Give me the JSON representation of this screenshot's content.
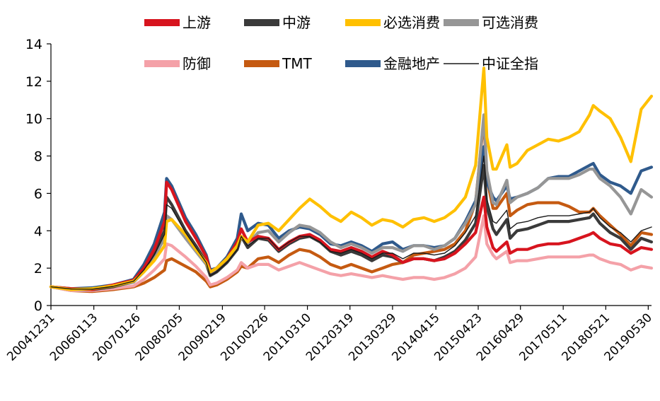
{
  "chart_data": {
    "type": "line",
    "title": "",
    "xlabel": "",
    "ylabel": "",
    "ylim": [
      0,
      14
    ],
    "yticks": [
      0,
      2,
      4,
      6,
      8,
      10,
      12,
      14
    ],
    "grid": false,
    "legend_position": "top",
    "x_tick_labels": [
      "20041231",
      "20060113",
      "20070126",
      "20080205",
      "20090219",
      "20100226",
      "20110310",
      "20120319",
      "20130329",
      "20140415",
      "20150423",
      "20160429",
      "20170511",
      "20180521",
      "20190530"
    ],
    "x": [
      "20041231",
      "20050630",
      "20051230",
      "20060630",
      "20061229",
      "20070330",
      "20070629",
      "20070928",
      "20071016",
      "20071130",
      "20080331",
      "20080630",
      "20080930",
      "20081104",
      "20081231",
      "20090331",
      "20090630",
      "20090804",
      "20090930",
      "20091231",
      "20100331",
      "20100630",
      "20100930",
      "20101231",
      "20110331",
      "20110630",
      "20110930",
      "20111230",
      "20120330",
      "20120629",
      "20120928",
      "20121231",
      "20130329",
      "20130628",
      "20130930",
      "20131231",
      "20140331",
      "20140630",
      "20140930",
      "20141231",
      "20150331",
      "20150612",
      "20150708",
      "20150831",
      "20150930",
      "20151231",
      "20160129",
      "20160331",
      "20160630",
      "20160930",
      "20161230",
      "20170331",
      "20170630",
      "20170929",
      "20171229",
      "20180131",
      "20180330",
      "20180629",
      "20180928",
      "20181228",
      "20190329",
      "20190628"
    ],
    "series": [
      {
        "name": "上游",
        "color": "#D7141E",
        "values": [
          1.0,
          0.9,
          0.85,
          1.1,
          1.35,
          2.0,
          3.0,
          4.5,
          6.6,
          6.2,
          4.5,
          3.6,
          2.6,
          1.8,
          2.0,
          2.5,
          3.4,
          4.1,
          3.4,
          3.7,
          3.6,
          3.0,
          3.4,
          3.7,
          3.8,
          3.5,
          3.0,
          2.9,
          3.1,
          2.9,
          2.6,
          2.9,
          2.7,
          2.3,
          2.5,
          2.5,
          2.4,
          2.5,
          2.8,
          3.3,
          3.9,
          5.8,
          4.2,
          3.1,
          2.9,
          3.4,
          2.8,
          3.0,
          3.0,
          3.2,
          3.3,
          3.3,
          3.4,
          3.6,
          3.8,
          3.9,
          3.6,
          3.3,
          3.2,
          2.8,
          3.1,
          3.0
        ]
      },
      {
        "name": "中游",
        "color": "#3A3A3A",
        "values": [
          1.0,
          0.88,
          0.85,
          1.0,
          1.3,
          1.9,
          2.8,
          4.0,
          5.8,
          5.4,
          4.0,
          3.2,
          2.3,
          1.6,
          1.8,
          2.3,
          3.0,
          3.7,
          3.1,
          3.6,
          3.5,
          2.9,
          3.3,
          3.6,
          3.7,
          3.4,
          2.9,
          2.7,
          2.9,
          2.7,
          2.4,
          2.7,
          2.6,
          2.3,
          2.5,
          2.5,
          2.4,
          2.6,
          2.9,
          3.5,
          4.4,
          7.5,
          5.3,
          4.1,
          3.8,
          4.6,
          3.6,
          4.0,
          4.1,
          4.3,
          4.5,
          4.5,
          4.5,
          4.6,
          4.7,
          4.9,
          4.4,
          3.9,
          3.6,
          3.0,
          3.6,
          3.4
        ]
      },
      {
        "name": "必选消费",
        "color": "#FFC000",
        "values": [
          1.0,
          0.85,
          0.9,
          1.05,
          1.3,
          1.8,
          2.4,
          3.2,
          4.5,
          4.6,
          3.8,
          3.0,
          2.3,
          1.8,
          2.0,
          2.5,
          3.2,
          3.7,
          3.4,
          4.3,
          4.4,
          4.0,
          4.6,
          5.2,
          5.7,
          5.3,
          4.8,
          4.5,
          5.0,
          4.7,
          4.3,
          4.6,
          4.5,
          4.2,
          4.6,
          4.7,
          4.5,
          4.7,
          5.1,
          5.8,
          7.5,
          12.7,
          9.0,
          7.3,
          7.3,
          8.6,
          7.4,
          7.6,
          8.3,
          8.6,
          8.9,
          8.8,
          9.0,
          9.3,
          10.2,
          10.7,
          10.4,
          10.0,
          9.0,
          7.7,
          10.5,
          11.2
        ]
      },
      {
        "name": "可选消费",
        "color": "#969696",
        "values": [
          1.0,
          0.85,
          0.85,
          1.0,
          1.25,
          1.8,
          2.6,
          3.6,
          4.8,
          4.6,
          3.6,
          2.9,
          2.2,
          1.6,
          1.8,
          2.3,
          3.0,
          3.7,
          3.3,
          3.9,
          4.0,
          3.4,
          3.9,
          4.3,
          4.2,
          3.9,
          3.4,
          3.1,
          3.3,
          3.1,
          2.8,
          3.1,
          3.1,
          2.9,
          3.2,
          3.2,
          3.0,
          3.2,
          3.6,
          4.4,
          5.4,
          10.2,
          7.2,
          5.5,
          5.4,
          6.7,
          5.5,
          5.8,
          6.0,
          6.3,
          6.8,
          6.8,
          6.8,
          7.0,
          7.3,
          7.3,
          6.8,
          6.4,
          5.8,
          4.9,
          6.2,
          5.8
        ]
      },
      {
        "name": "防御",
        "color": "#F4A1A8",
        "values": [
          1.0,
          0.8,
          0.8,
          0.9,
          1.05,
          1.4,
          1.9,
          2.5,
          3.3,
          3.2,
          2.6,
          2.1,
          1.5,
          1.1,
          1.2,
          1.5,
          1.9,
          2.3,
          2.0,
          2.2,
          2.2,
          1.9,
          2.1,
          2.3,
          2.1,
          1.9,
          1.7,
          1.6,
          1.7,
          1.6,
          1.5,
          1.6,
          1.5,
          1.4,
          1.5,
          1.5,
          1.4,
          1.5,
          1.7,
          2.0,
          2.6,
          4.8,
          3.3,
          2.7,
          2.5,
          2.9,
          2.3,
          2.4,
          2.4,
          2.5,
          2.6,
          2.6,
          2.6,
          2.6,
          2.7,
          2.7,
          2.5,
          2.3,
          2.2,
          1.9,
          2.1,
          2.0
        ]
      },
      {
        "name": "TMT",
        "color": "#C55A11",
        "values": [
          1.0,
          0.8,
          0.75,
          0.85,
          1.0,
          1.2,
          1.5,
          1.9,
          2.4,
          2.5,
          2.1,
          1.8,
          1.3,
          1.0,
          1.1,
          1.4,
          1.8,
          2.1,
          2.0,
          2.5,
          2.6,
          2.3,
          2.7,
          3.0,
          2.9,
          2.6,
          2.2,
          2.0,
          2.2,
          2.0,
          1.8,
          2.0,
          2.2,
          2.3,
          2.7,
          2.8,
          2.9,
          3.0,
          3.3,
          4.0,
          5.5,
          10.0,
          6.8,
          5.2,
          5.2,
          6.0,
          4.8,
          5.1,
          5.4,
          5.5,
          5.5,
          5.5,
          5.3,
          5.0,
          5.0,
          5.2,
          4.8,
          4.3,
          3.8,
          3.2,
          3.9,
          3.8
        ]
      },
      {
        "name": "金融地产",
        "color": "#2F5A8C",
        "values": [
          1.0,
          0.9,
          0.95,
          1.1,
          1.4,
          2.2,
          3.3,
          5.0,
          6.8,
          6.4,
          4.7,
          3.8,
          2.7,
          1.9,
          2.0,
          2.6,
          3.6,
          4.9,
          4.0,
          4.4,
          4.3,
          3.6,
          4.0,
          4.2,
          4.1,
          3.8,
          3.3,
          3.2,
          3.4,
          3.2,
          2.9,
          3.3,
          3.4,
          3.0,
          3.2,
          3.2,
          3.1,
          3.2,
          3.6,
          4.5,
          5.6,
          8.5,
          6.6,
          5.8,
          5.6,
          6.4,
          5.7,
          5.8,
          6.0,
          6.3,
          6.8,
          6.9,
          6.9,
          7.2,
          7.5,
          7.6,
          7.0,
          6.6,
          6.4,
          6.0,
          7.2,
          7.4
        ]
      },
      {
        "name": "中证全指",
        "color": "#1A1A1A",
        "values": [
          1.0,
          0.88,
          0.87,
          1.02,
          1.3,
          1.9,
          2.7,
          3.8,
          5.4,
          5.2,
          3.9,
          3.1,
          2.3,
          1.6,
          1.8,
          2.3,
          3.0,
          3.7,
          3.2,
          3.6,
          3.6,
          3.0,
          3.4,
          3.7,
          3.7,
          3.4,
          2.9,
          2.8,
          3.0,
          2.8,
          2.5,
          2.8,
          2.8,
          2.5,
          2.8,
          2.8,
          2.7,
          2.8,
          3.2,
          3.9,
          4.8,
          8.0,
          5.7,
          4.5,
          4.4,
          5.1,
          4.1,
          4.4,
          4.5,
          4.7,
          4.8,
          4.8,
          4.8,
          4.9,
          5.0,
          5.2,
          4.7,
          4.2,
          3.9,
          3.4,
          4.0,
          4.2
        ]
      }
    ]
  }
}
